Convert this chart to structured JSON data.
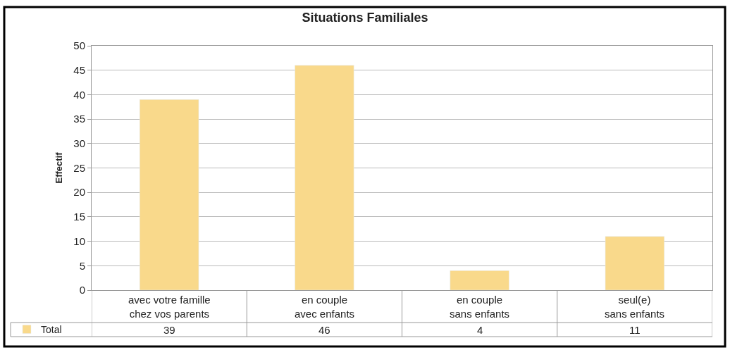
{
  "chart_data": {
    "type": "bar",
    "title": "Situations Familiales",
    "ylabel": "Effectif",
    "categories": [
      "avec votre famille chez vos parents",
      "en couple avec enfants",
      "en couple sans enfants",
      "seul(e) sans enfants"
    ],
    "series": [
      {
        "name": "Total",
        "color": "#f9d98b",
        "values": [
          39,
          46,
          4,
          11
        ]
      }
    ],
    "ylim": [
      0,
      50
    ],
    "yticks": [
      0,
      5,
      10,
      15,
      20,
      25,
      30,
      35,
      40,
      45,
      50
    ],
    "grid": "y",
    "legend": "bottom left",
    "data_labels": true
  }
}
